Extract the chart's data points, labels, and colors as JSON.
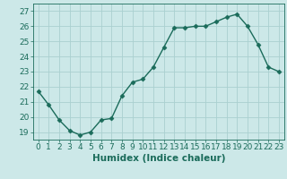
{
  "x": [
    0,
    1,
    2,
    3,
    4,
    5,
    6,
    7,
    8,
    9,
    10,
    11,
    12,
    13,
    14,
    15,
    16,
    17,
    18,
    19,
    20,
    21,
    22,
    23
  ],
  "y": [
    21.7,
    20.8,
    19.8,
    19.1,
    18.8,
    19.0,
    19.8,
    19.9,
    21.4,
    22.3,
    22.5,
    23.3,
    24.6,
    25.9,
    25.9,
    26.0,
    26.0,
    26.3,
    26.6,
    26.8,
    26.0,
    24.8,
    23.3,
    23.0
  ],
  "line_color": "#1a6b5a",
  "marker": "D",
  "marker_size": 2.5,
  "bg_color": "#cce8e8",
  "grid_color": "#aad0d0",
  "xlabel": "Humidex (Indice chaleur)",
  "xlim": [
    -0.5,
    23.5
  ],
  "ylim": [
    18.5,
    27.5
  ],
  "yticks": [
    19,
    20,
    21,
    22,
    23,
    24,
    25,
    26,
    27
  ],
  "xticks": [
    0,
    1,
    2,
    3,
    4,
    5,
    6,
    7,
    8,
    9,
    10,
    11,
    12,
    13,
    14,
    15,
    16,
    17,
    18,
    19,
    20,
    21,
    22,
    23
  ],
  "tick_color": "#1a6b5a",
  "tick_fontsize": 6.5,
  "xlabel_fontsize": 7.5
}
